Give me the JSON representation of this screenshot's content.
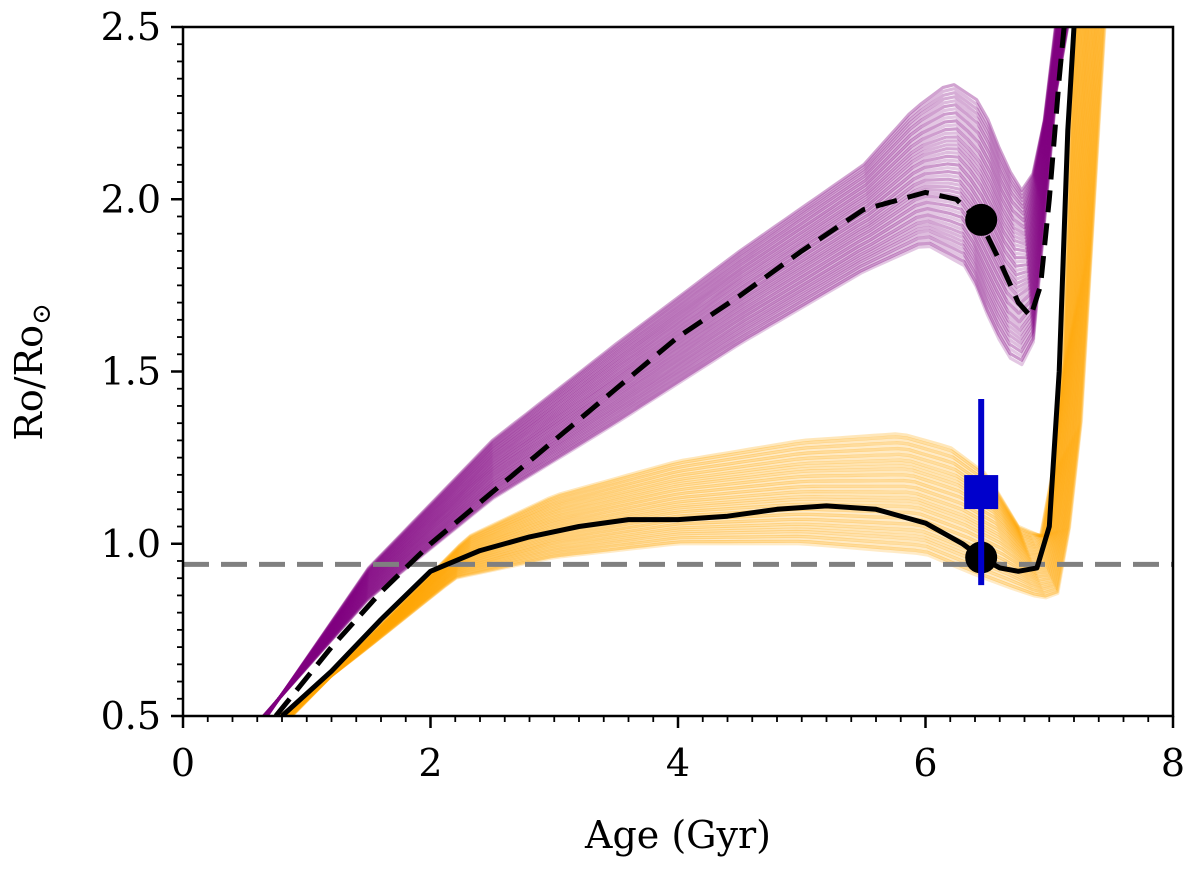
{
  "chart_data": {
    "type": "line",
    "title": "",
    "xlabel": "Age (Gyr)",
    "ylabel": "Ro/Ro",
    "ylabel_subscript": "⊙",
    "xlim": [
      0,
      8
    ],
    "ylim": [
      0.5,
      2.5
    ],
    "x_ticks": [
      0,
      2,
      4,
      6,
      8
    ],
    "x_tick_labels": [
      "0",
      "2",
      "4",
      "6",
      "8"
    ],
    "y_ticks": [
      0.5,
      1.0,
      1.5,
      2.0,
      2.5
    ],
    "y_tick_labels": [
      "0.5",
      "1.0",
      "1.5",
      "2.0",
      "2.5"
    ],
    "grid": false,
    "legend": "none",
    "colors": {
      "purple": "#800080",
      "orange": "#ffa500",
      "black": "#000000",
      "reference": "#808080",
      "observed": "#0000cc"
    },
    "reference_line": {
      "name": "solar value",
      "y": 0.94,
      "style": "dashed"
    },
    "ensembles": [
      {
        "name": "purple model ensemble",
        "color": "#800080",
        "count": 46,
        "lower_envelope": {
          "x": [
            0.65,
            1.5,
            2.5,
            3.5,
            4.5,
            5.5,
            6.0,
            6.35,
            6.55,
            6.75,
            6.92,
            7.0,
            7.15
          ],
          "y": [
            0.5,
            0.84,
            1.13,
            1.35,
            1.58,
            1.79,
            1.87,
            1.8,
            1.62,
            1.5,
            1.62,
            2.2,
            2.5
          ]
        },
        "upper_envelope": {
          "x": [
            0.68,
            1.5,
            2.5,
            3.5,
            4.5,
            5.5,
            5.9,
            6.2,
            6.45,
            6.65,
            6.82,
            6.95,
            7.05
          ],
          "y": [
            0.5,
            0.93,
            1.3,
            1.58,
            1.85,
            2.1,
            2.26,
            2.34,
            2.28,
            2.1,
            2.0,
            2.2,
            2.5
          ]
        }
      },
      {
        "name": "orange model ensemble",
        "color": "#ffa500",
        "count": 42,
        "lower_envelope": {
          "x": [
            0.78,
            1.5,
            2.2,
            3.0,
            4.0,
            5.0,
            6.0,
            6.4,
            6.7,
            6.95,
            7.1,
            7.25,
            7.45
          ],
          "y": [
            0.5,
            0.7,
            0.9,
            0.96,
            1.0,
            1.0,
            0.97,
            0.91,
            0.87,
            0.84,
            0.86,
            1.3,
            2.5
          ]
        },
        "upper_envelope": {
          "x": [
            0.88,
            1.7,
            2.3,
            3.0,
            4.0,
            5.0,
            5.8,
            6.2,
            6.5,
            6.75,
            6.95,
            7.1,
            7.2
          ],
          "y": [
            0.5,
            0.8,
            1.02,
            1.14,
            1.24,
            1.3,
            1.32,
            1.28,
            1.2,
            1.05,
            1.02,
            1.4,
            2.5
          ]
        }
      }
    ],
    "series": [
      {
        "name": "median orange track",
        "color": "#000000",
        "style": "solid",
        "x": [
          0.8,
          1.2,
          1.6,
          2.0,
          2.4,
          2.8,
          3.2,
          3.6,
          4.0,
          4.4,
          4.8,
          5.2,
          5.6,
          6.0,
          6.3,
          6.45,
          6.6,
          6.75,
          6.9,
          7.0,
          7.08,
          7.15,
          7.2
        ],
        "y": [
          0.5,
          0.63,
          0.78,
          0.92,
          0.98,
          1.02,
          1.05,
          1.07,
          1.07,
          1.08,
          1.1,
          1.11,
          1.1,
          1.06,
          1.0,
          0.96,
          0.93,
          0.92,
          0.93,
          1.05,
          1.5,
          2.2,
          2.5
        ]
      },
      {
        "name": "median purple track",
        "color": "#000000",
        "style": "dashed",
        "x": [
          0.75,
          1.2,
          1.6,
          2.0,
          2.5,
          3.0,
          3.5,
          4.0,
          4.5,
          5.0,
          5.5,
          6.0,
          6.25,
          6.45,
          6.6,
          6.75,
          6.85,
          6.93,
          7.0,
          7.08,
          7.12
        ],
        "y": [
          0.5,
          0.7,
          0.86,
          1.0,
          1.15,
          1.3,
          1.45,
          1.6,
          1.72,
          1.85,
          1.97,
          2.02,
          2.0,
          1.93,
          1.82,
          1.7,
          1.66,
          1.75,
          2.0,
          2.35,
          2.5
        ]
      }
    ],
    "markers": [
      {
        "name": "purple model point",
        "x": 6.45,
        "y": 1.94,
        "shape": "circle",
        "color": "#000000"
      },
      {
        "name": "orange model point",
        "x": 6.45,
        "y": 0.96,
        "shape": "circle",
        "color": "#000000"
      },
      {
        "name": "observed value",
        "x": 6.45,
        "y": 1.15,
        "yerr_low": 0.27,
        "yerr_high": 0.27,
        "shape": "square",
        "color": "#0000cc"
      }
    ]
  }
}
